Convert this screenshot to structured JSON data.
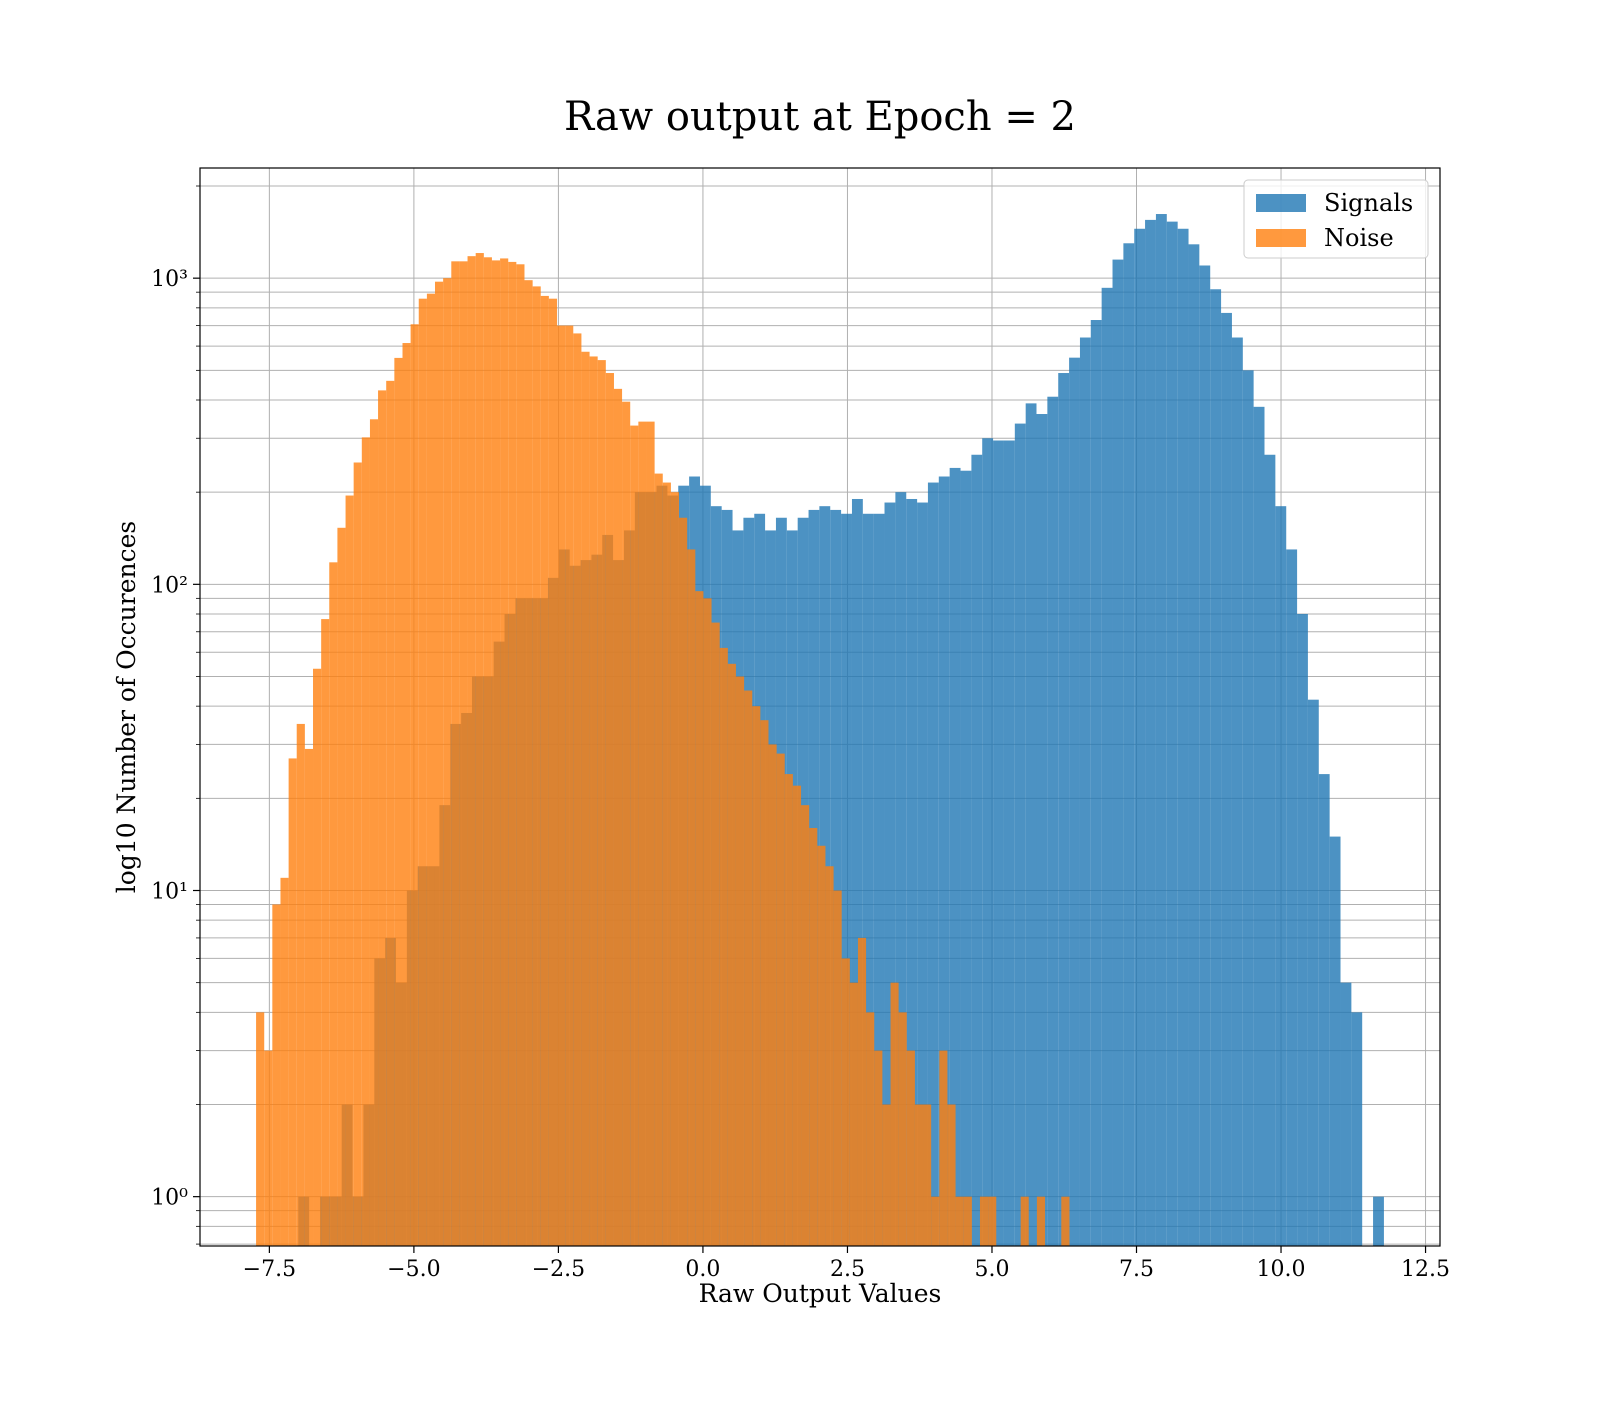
{
  "chart_data": {
    "type": "histogram",
    "title": "Raw output at Epoch = 2",
    "x_label": "Raw Output Values",
    "y_label": "log10 Number of Occurences",
    "log_y": true,
    "grid": true,
    "legend": "upper right",
    "xlim": [
      -8.7,
      12.75
    ],
    "ylim": [
      0.69,
      2290
    ],
    "xticks": [
      {
        "value": -7.5,
        "label": "−7.5"
      },
      {
        "value": -5,
        "label": "−5.0"
      },
      {
        "value": -2.5,
        "label": "−2.5"
      },
      {
        "value": 0,
        "label": "0.0"
      },
      {
        "value": 2.5,
        "label": "2.5"
      },
      {
        "value": 5,
        "label": "5.0"
      },
      {
        "value": 7.5,
        "label": "7.5"
      },
      {
        "value": 10,
        "label": "10.0"
      },
      {
        "value": 12.5,
        "label": "12.5"
      }
    ],
    "yticks": [
      {
        "value": 1,
        "label": "10⁰"
      },
      {
        "value": 10,
        "label": "10¹"
      },
      {
        "value": 100,
        "label": "10²"
      },
      {
        "value": 1000,
        "label": "10³"
      }
    ],
    "yminorticks": [
      0.7,
      0.8,
      0.9,
      2,
      3,
      4,
      5,
      6,
      7,
      8,
      9,
      20,
      30,
      40,
      50,
      60,
      70,
      80,
      90,
      200,
      300,
      400,
      500,
      600,
      700,
      800,
      900,
      2000
    ],
    "series": [
      {
        "name": "Signals",
        "color": "#1f77b4",
        "opacity": 0.8,
        "bins": [
          -7.0,
          -6.812,
          -6.624,
          -6.437,
          -6.249,
          -6.061,
          -5.873,
          -5.685,
          -5.498,
          -5.31,
          -5.122,
          -4.934,
          -4.746,
          -4.559,
          -4.371,
          -4.183,
          -3.995,
          -3.807,
          -3.62,
          -3.432,
          -3.244,
          -3.056,
          -2.868,
          -2.681,
          -2.493,
          -2.305,
          -2.117,
          -1.929,
          -1.742,
          -1.554,
          -1.366,
          -1.178,
          -0.99,
          -0.803,
          -0.615,
          -0.427,
          -0.239,
          -0.051,
          0.136,
          0.324,
          0.512,
          0.7,
          0.888,
          1.075,
          1.263,
          1.451,
          1.639,
          1.827,
          2.014,
          2.202,
          2.39,
          2.578,
          2.766,
          2.953,
          3.141,
          3.329,
          3.517,
          3.705,
          3.892,
          4.08,
          4.268,
          4.456,
          4.644,
          4.831,
          5.019,
          5.207,
          5.395,
          5.583,
          5.77,
          5.958,
          6.146,
          6.334,
          6.522,
          6.709,
          6.897,
          7.085,
          7.273,
          7.461,
          7.648,
          7.836,
          8.024,
          8.212,
          8.4,
          8.587,
          8.775,
          8.963,
          9.151,
          9.339,
          9.526,
          9.714,
          9.902,
          10.09,
          10.278,
          10.465,
          10.653,
          10.841,
          11.029,
          11.217,
          11.404,
          11.592,
          11.78
        ],
        "values": [
          1,
          0,
          1,
          1,
          2,
          1,
          2,
          6,
          7,
          5,
          10,
          12,
          12,
          19,
          35,
          38,
          50,
          50,
          65,
          80,
          90,
          90,
          90,
          105,
          130,
          115,
          120,
          125,
          145,
          120,
          150,
          200,
          200,
          210,
          195,
          210,
          225,
          210,
          180,
          175,
          150,
          165,
          170,
          150,
          165,
          150,
          165,
          175,
          180,
          175,
          170,
          190,
          170,
          170,
          185,
          200,
          190,
          185,
          215,
          225,
          240,
          235,
          265,
          300,
          295,
          295,
          335,
          390,
          360,
          410,
          490,
          550,
          640,
          730,
          930,
          1150,
          1300,
          1450,
          1550,
          1620,
          1530,
          1450,
          1290,
          1100,
          920,
          770,
          640,
          500,
          380,
          265,
          180,
          130,
          80,
          42,
          24,
          15,
          5,
          4,
          0,
          1
        ]
      },
      {
        "name": "Noise",
        "color": "#ff7f0e",
        "opacity": 0.8,
        "bins": [
          -7.73,
          -7.589,
          -7.449,
          -7.308,
          -7.167,
          -7.027,
          -6.886,
          -6.745,
          -6.604,
          -6.464,
          -6.323,
          -6.182,
          -6.042,
          -5.901,
          -5.76,
          -5.62,
          -5.479,
          -5.338,
          -5.197,
          -5.057,
          -4.916,
          -4.775,
          -4.635,
          -4.494,
          -4.353,
          -4.213,
          -4.072,
          -3.931,
          -3.79,
          -3.65,
          -3.509,
          -3.368,
          -3.228,
          -3.087,
          -2.946,
          -2.806,
          -2.665,
          -2.524,
          -2.383,
          -2.243,
          -2.102,
          -1.961,
          -1.821,
          -1.68,
          -1.539,
          -1.399,
          -1.258,
          -1.117,
          -0.976,
          -0.836,
          -0.695,
          -0.554,
          -0.414,
          -0.273,
          -0.132,
          0.008,
          0.149,
          0.29,
          0.431,
          0.571,
          0.712,
          0.853,
          0.993,
          1.134,
          1.275,
          1.415,
          1.556,
          1.697,
          1.838,
          1.978,
          2.119,
          2.26,
          2.4,
          2.541,
          2.682,
          2.822,
          2.963,
          3.104,
          3.245,
          3.385,
          3.526,
          3.667,
          3.807,
          3.948,
          4.089,
          4.229,
          4.37,
          4.511,
          4.652,
          4.792,
          4.933,
          5.074,
          5.214,
          5.355,
          5.496,
          5.636,
          5.777,
          5.918,
          6.059,
          6.199,
          6.34
        ],
        "values": [
          4,
          3,
          9,
          11,
          27,
          35,
          29,
          53,
          77,
          118,
          153,
          195,
          250,
          302,
          346,
          430,
          462,
          549,
          614,
          707,
          857,
          890,
          974,
          1000,
          1135,
          1135,
          1180,
          1208,
          1170,
          1143,
          1160,
          1130,
          1110,
          985,
          940,
          875,
          857,
          700,
          700,
          660,
          575,
          555,
          540,
          490,
          435,
          395,
          330,
          340,
          340,
          230,
          215,
          200,
          165,
          130,
          95,
          90,
          75,
          62,
          55,
          50,
          45,
          40,
          36,
          30,
          28,
          24,
          22,
          19,
          16,
          14,
          12,
          10,
          6,
          5,
          7,
          4,
          3,
          2,
          5,
          4,
          3,
          2,
          2,
          1,
          3,
          2,
          1,
          1,
          0,
          1,
          1,
          0,
          0,
          0,
          1,
          0,
          1,
          0,
          0,
          1
        ]
      }
    ]
  }
}
